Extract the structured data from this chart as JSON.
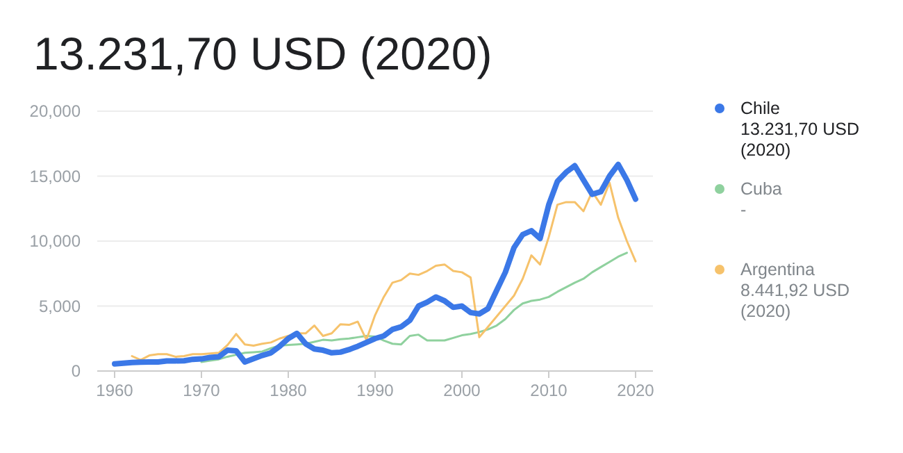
{
  "chart_data": {
    "type": "line",
    "title": "13.231,70 USD (2020)",
    "xlim": [
      1958,
      2022
    ],
    "xticks": [
      1960,
      1970,
      1980,
      1990,
      2000,
      2010,
      2020
    ],
    "ylim": [
      0,
      20000
    ],
    "yticks": [
      {
        "value": 0,
        "label": "0"
      },
      {
        "value": 5000,
        "label": "5,000"
      },
      {
        "value": 10000,
        "label": "10,000"
      },
      {
        "value": 15000,
        "label": "15,000"
      },
      {
        "value": 20000,
        "label": "20,000"
      }
    ],
    "grid": "y",
    "legend": "right",
    "annotations": [
      "13.231,70 USD (2020)",
      "-",
      "8.441,92 USD (2020)"
    ],
    "x": [
      1960,
      1961,
      1962,
      1963,
      1964,
      1965,
      1966,
      1967,
      1968,
      1969,
      1970,
      1971,
      1972,
      1973,
      1974,
      1975,
      1976,
      1977,
      1978,
      1979,
      1980,
      1981,
      1982,
      1983,
      1984,
      1985,
      1986,
      1987,
      1988,
      1989,
      1990,
      1991,
      1992,
      1993,
      1994,
      1995,
      1996,
      1997,
      1998,
      1999,
      2000,
      2001,
      2002,
      2003,
      2004,
      2005,
      2006,
      2007,
      2008,
      2009,
      2010,
      2011,
      2012,
      2013,
      2014,
      2015,
      2016,
      2017,
      2018,
      2019,
      2020
    ],
    "series": [
      {
        "name": "Cuba",
        "color": "#8fd19e",
        "values": [
          null,
          null,
          null,
          null,
          null,
          null,
          null,
          null,
          null,
          null,
          700,
          800,
          900,
          1100,
          1250,
          1400,
          1450,
          1500,
          1750,
          1950,
          2000,
          2050,
          2100,
          2250,
          2400,
          2350,
          2450,
          2500,
          2600,
          2700,
          2650,
          2350,
          2100,
          2050,
          2700,
          2800,
          2350,
          2350,
          2350,
          2550,
          2750,
          2850,
          3000,
          3200,
          3500,
          4000,
          4700,
          5200,
          5400,
          5500,
          5700,
          6100,
          6450,
          6800,
          7100,
          7600,
          8000,
          8400,
          8800,
          9100,
          null
        ]
      },
      {
        "name": "Argentina",
        "color": "#f6c26b",
        "values": [
          null,
          null,
          1150,
          850,
          1200,
          1300,
          1300,
          1100,
          1150,
          1300,
          1300,
          1350,
          1400,
          2000,
          2850,
          2050,
          1950,
          2100,
          2200,
          2500,
          2700,
          2900,
          2900,
          3500,
          2700,
          2900,
          3600,
          3550,
          3800,
          2400,
          4300,
          5700,
          6800,
          7000,
          7500,
          7400,
          7700,
          8100,
          8200,
          7700,
          7600,
          7200,
          2600,
          3400,
          4200,
          5000,
          5800,
          7100,
          8900,
          8200,
          10300,
          12800,
          13000,
          13000,
          12300,
          13800,
          12800,
          14500,
          11800,
          10000,
          8441.92
        ]
      },
      {
        "name": "Chile",
        "color": "#3b78e7",
        "values": [
          550,
          600,
          650,
          680,
          690,
          700,
          780,
          780,
          790,
          900,
          930,
          1050,
          1100,
          1600,
          1550,
          700,
          950,
          1200,
          1400,
          1900,
          2500,
          2900,
          2100,
          1700,
          1600,
          1400,
          1450,
          1650,
          1900,
          2200,
          2500,
          2700,
          3200,
          3400,
          3900,
          5000,
          5300,
          5700,
          5400,
          4900,
          5000,
          4500,
          4400,
          4800,
          6200,
          7600,
          9500,
          10500,
          10800,
          10200,
          12800,
          14600,
          15300,
          15800,
          14700,
          13600,
          13800,
          15000,
          15900,
          14700,
          13231.7
        ]
      }
    ]
  }
}
